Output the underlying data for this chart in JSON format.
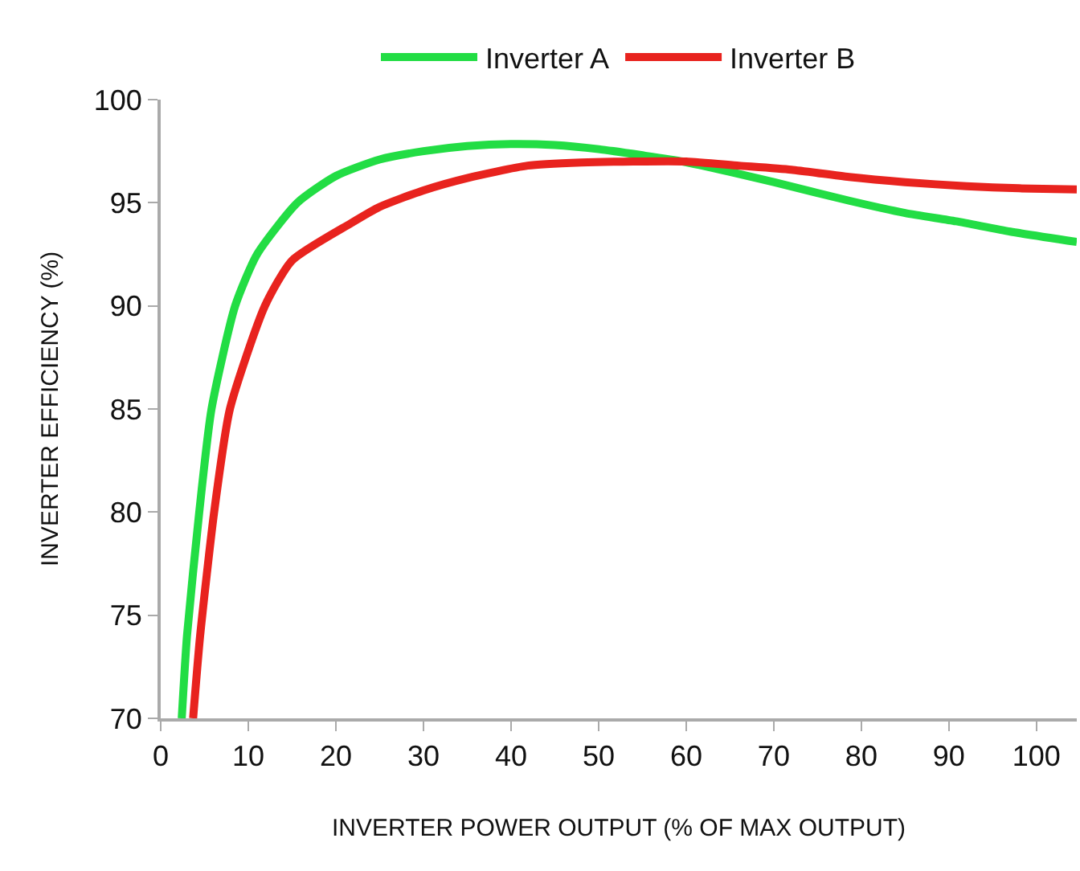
{
  "chart_data": {
    "type": "line",
    "xlabel": "INVERTER POWER OUTPUT (% OF MAX OUTPUT)",
    "ylabel": "INVERTER EFFICIENCY (%)",
    "xlim": [
      0,
      104.6
    ],
    "ylim": [
      70,
      100
    ],
    "xticks": [
      0,
      10,
      20,
      30,
      40,
      50,
      60,
      70,
      80,
      90,
      100
    ],
    "yticks": [
      70,
      75,
      80,
      85,
      90,
      95,
      100
    ],
    "legend": "top",
    "marker": "none",
    "line_style": "solid",
    "series": [
      {
        "name": "Inverter A",
        "color": "#22dd44",
        "x": [
          2.4,
          3,
          4.4,
          5.8,
          8.5,
          11,
          15.6,
          20,
          25,
          30,
          35,
          40,
          45,
          50,
          55,
          59.6,
          65,
          70,
          78.6,
          85,
          90.8,
          97,
          104.6
        ],
        "values": [
          70,
          74,
          80,
          85,
          90,
          92.5,
          95,
          96.3,
          97.1,
          97.5,
          97.75,
          97.85,
          97.8,
          97.6,
          97.3,
          97.0,
          96.5,
          96.0,
          95.1,
          94.5,
          94.1,
          93.6,
          93.1
        ]
      },
      {
        "name": "Inverter B",
        "color": "#e8231e",
        "x": [
          3.7,
          4.5,
          6.1,
          7.9,
          11.9,
          15,
          21.7,
          25,
          30,
          35,
          41.9,
          48,
          54,
          60,
          66,
          72,
          78.6,
          85,
          92,
          98,
          104.6
        ],
        "values": [
          70,
          74,
          80,
          85,
          90,
          92.2,
          94,
          94.8,
          95.6,
          96.2,
          96.8,
          96.95,
          97.0,
          97.0,
          96.8,
          96.6,
          96.25,
          96.0,
          95.8,
          95.7,
          95.65
        ]
      }
    ]
  }
}
